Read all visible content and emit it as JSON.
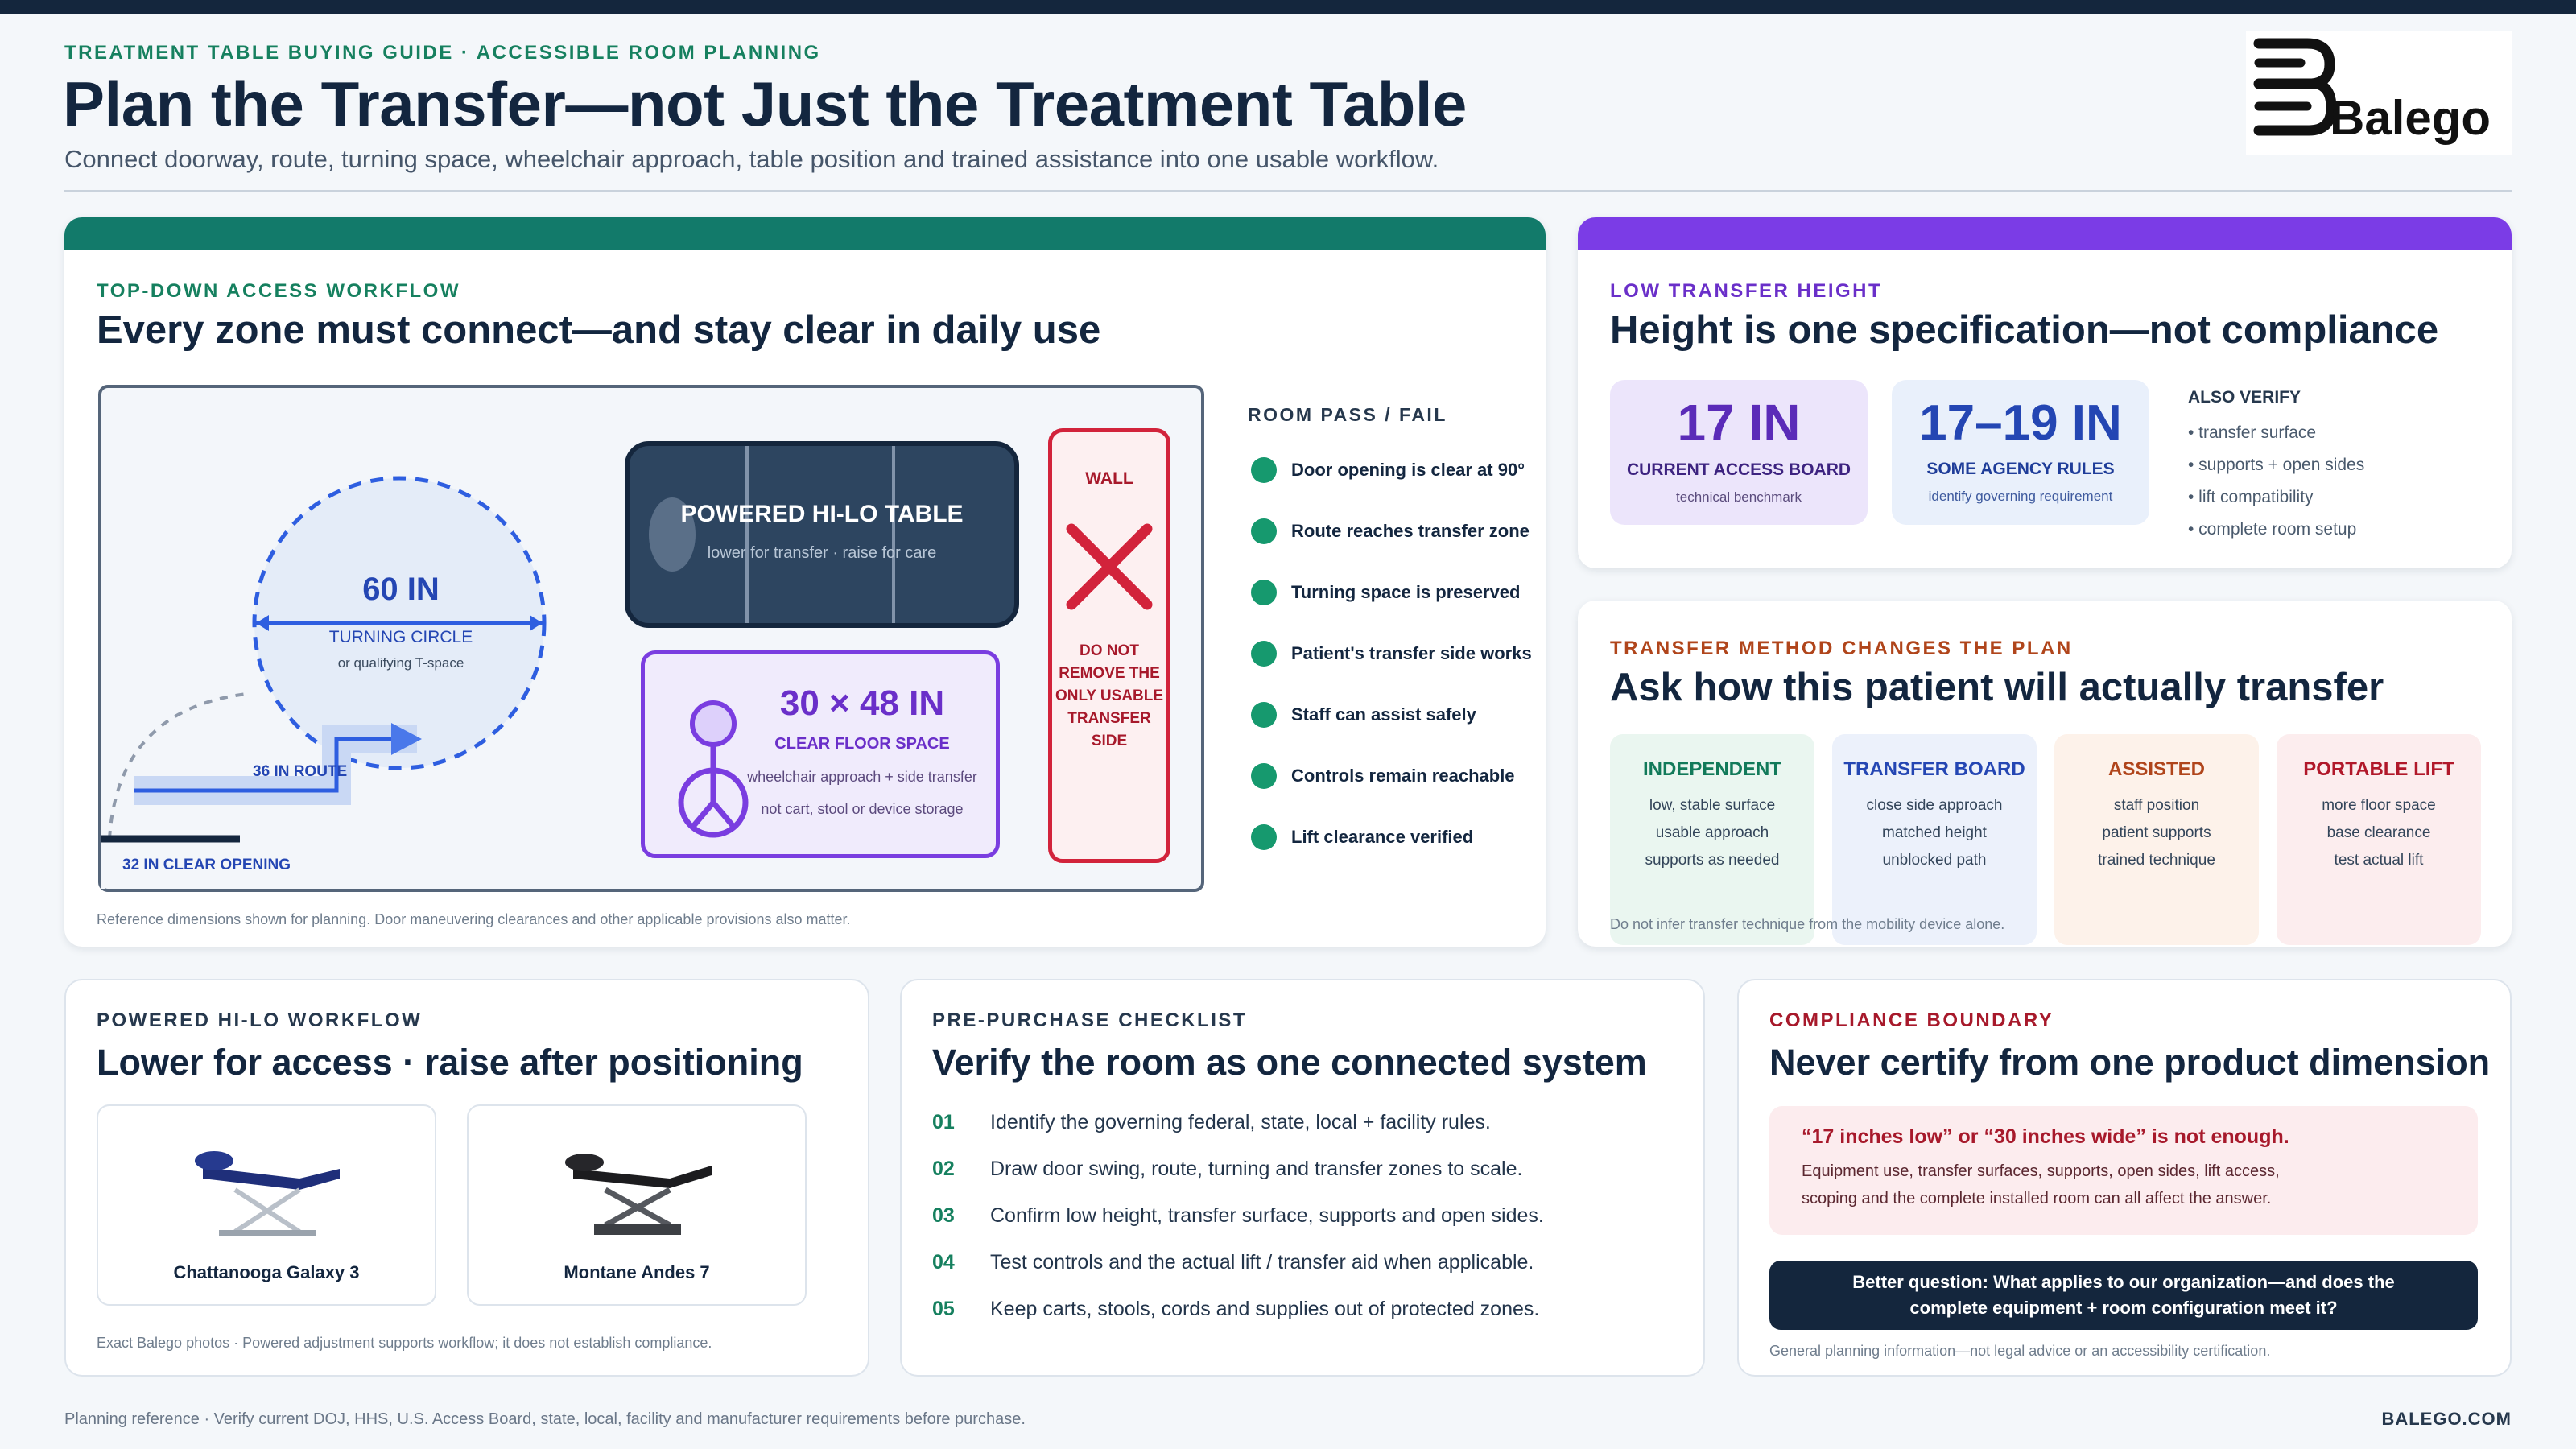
{
  "header": {
    "eyebrow": "TREATMENT TABLE BUYING GUIDE · ACCESSIBLE ROOM PLANNING",
    "title": "Plan the Transfer—not Just the Treatment Table",
    "subtitle": "Connect doorway, route, turning space, wheelchair approach, table position and trained assistance into one usable workflow.",
    "logo_text": "Balego"
  },
  "workflow": {
    "eyebrow": "TOP-DOWN ACCESS WORKFLOW",
    "title": "Every zone must connect—and stay clear in daily use",
    "turning_value": "60 IN",
    "turning_label": "TURNING CIRCLE",
    "turning_sub": "or qualifying T-space",
    "table_title": "POWERED HI-LO TABLE",
    "table_sub": "lower for transfer · raise for care",
    "floor_value": "30 × 48 IN",
    "floor_label": "CLEAR FLOOR SPACE",
    "floor_sub1": "wheelchair approach + side transfer",
    "floor_sub2": "not cart, stool or device storage",
    "wall_label": "WALL",
    "wall_warning": [
      "DO NOT",
      "REMOVE THE",
      "ONLY USABLE",
      "TRANSFER SIDE"
    ],
    "route_label": "36 IN ROUTE",
    "door_label": "32 IN CLEAR OPENING",
    "pass_fail_title": "ROOM PASS / FAIL",
    "checks": [
      "Door opening is clear at 90°",
      "Route reaches transfer zone",
      "Turning space is preserved",
      "Patient's transfer side works",
      "Staff can assist safely",
      "Controls remain reachable",
      "Lift clearance verified"
    ],
    "note": "Reference dimensions shown for planning. Door maneuvering clearances and other applicable provisions also matter."
  },
  "height": {
    "eyebrow": "LOW TRANSFER HEIGHT",
    "title": "Height is one specification—not compliance",
    "stat1_value": "17 IN",
    "stat1_label": "CURRENT ACCESS BOARD",
    "stat1_sub": "technical benchmark",
    "stat2_value": "17–19 IN",
    "stat2_label": "SOME AGENCY RULES",
    "stat2_sub": "identify governing requirement",
    "also_title": "ALSO VERIFY",
    "also_items": [
      "• transfer surface",
      "• supports + open sides",
      "• lift compatibility",
      "• complete room setup"
    ]
  },
  "method": {
    "eyebrow": "TRANSFER METHOD CHANGES THE PLAN",
    "title": "Ask how this patient will actually transfer",
    "cards": [
      {
        "title": "INDEPENDENT",
        "lines": [
          "low, stable surface",
          "usable approach",
          "supports as needed"
        ],
        "color": "#127a5a",
        "bg": "#eaf6f0"
      },
      {
        "title": "TRANSFER BOARD",
        "lines": [
          "close side approach",
          "matched height",
          "unblocked path"
        ],
        "color": "#2446b3",
        "bg": "#ecf1fb"
      },
      {
        "title": "ASSISTED",
        "lines": [
          "staff position",
          "patient supports",
          "trained technique"
        ],
        "color": "#b0451b",
        "bg": "#fdf2ea"
      },
      {
        "title": "PORTABLE LIFT",
        "lines": [
          "more floor space",
          "base clearance",
          "test actual lift"
        ],
        "color": "#b1182a",
        "bg": "#fcedee"
      }
    ],
    "note": "Do not infer transfer technique from the mobility device alone."
  },
  "hilo": {
    "eyebrow": "POWERED HI-LO WORKFLOW",
    "title": "Lower for access · raise after positioning",
    "products": [
      "Chattanooga Galaxy 3",
      "Montane Andes 7"
    ],
    "note": "Exact Balego photos · Powered adjustment supports workflow; it does not establish compliance."
  },
  "checklist": {
    "eyebrow": "PRE-PURCHASE CHECKLIST",
    "title": "Verify the room as one connected system",
    "steps": [
      {
        "num": "01",
        "text": "Identify the governing federal, state, local + facility rules."
      },
      {
        "num": "02",
        "text": "Draw door swing, route, turning and transfer zones to scale."
      },
      {
        "num": "03",
        "text": "Confirm low height, transfer surface, supports and open sides."
      },
      {
        "num": "04",
        "text": "Test controls and the actual lift / transfer aid when applicable."
      },
      {
        "num": "05",
        "text": "Keep carts, stools, cords and supplies out of protected zones."
      }
    ]
  },
  "boundary": {
    "eyebrow": "COMPLIANCE BOUNDARY",
    "title": "Never certify from one product dimension",
    "warn_title": "“17 inches low” or “30 inches wide” is not enough.",
    "warn_line1": "Equipment use, transfer surfaces, supports, open sides, lift access,",
    "warn_line2": "scoping and the complete installed room can all affect the answer.",
    "question_line1": "Better question: What applies to our organization—and does the",
    "question_line2": "complete equipment + room configuration meet it?",
    "note": "General planning information—not legal advice or an accessibility certification."
  },
  "footer": {
    "left": "Planning reference · Verify current DOJ, HHS, U.S. Access Board, state, local, facility and manufacturer requirements before purchase.",
    "right": "BALEGO.COM"
  }
}
